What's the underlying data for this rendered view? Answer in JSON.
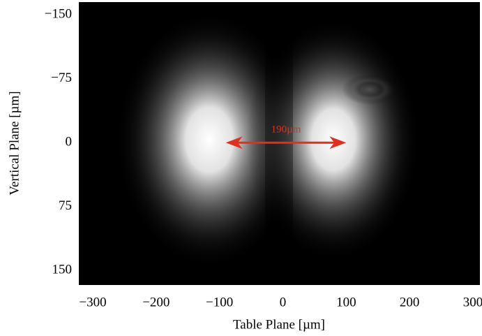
{
  "chart_data": {
    "type": "image",
    "x_label": "Table Plane [µm]",
    "y_label": "Vertical Plane [µm]",
    "xlim": [
      -322,
      311
    ],
    "ylim": [
      -165,
      167
    ],
    "y_inverted": true,
    "xticks": [
      {
        "value": -300,
        "label": "−300"
      },
      {
        "value": -200,
        "label": "−200"
      },
      {
        "value": -100,
        "label": "−100"
      },
      0,
      100,
      200,
      300
    ],
    "yticks": [
      {
        "value": -150,
        "label": "−150"
      },
      {
        "value": -75,
        "label": "−75"
      },
      0,
      75,
      150
    ],
    "annotation": {
      "text": "190µm",
      "color": "#e0301e",
      "x1": -90,
      "x2": 100,
      "y": 0
    }
  }
}
